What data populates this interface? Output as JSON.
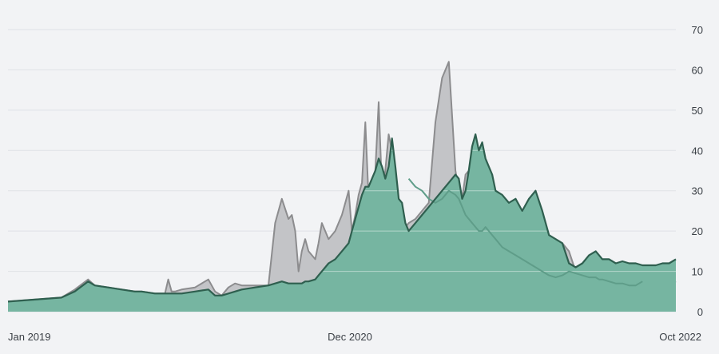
{
  "chart_data": {
    "type": "area",
    "x_tick_labels": [
      "Jan 2019",
      "Dec 2020",
      "Oct 2022"
    ],
    "ylim": [
      0,
      70
    ],
    "y_ticks": [
      0,
      10,
      20,
      30,
      40,
      50,
      60,
      70
    ],
    "y_axis_position": "right",
    "grid": "horizontal",
    "legend": "none",
    "colors": {
      "background": "#f2f3f5",
      "grid": "#dfe2e6",
      "gray_fill": "#c3c4c7",
      "gray_line": "#8c8c8e",
      "green_fill": "#76b5a1",
      "green_line": "#2f5f4f",
      "overlay_line": "#5f9d89"
    },
    "x_points": [
      0,
      0.04,
      0.08,
      0.1,
      0.12,
      0.13,
      0.15,
      0.17,
      0.19,
      0.2,
      0.22,
      0.235,
      0.24,
      0.245,
      0.25,
      0.26,
      0.28,
      0.3,
      0.31,
      0.32,
      0.33,
      0.34,
      0.35,
      0.37,
      0.39,
      0.4,
      0.41,
      0.42,
      0.425,
      0.43,
      0.435,
      0.44,
      0.445,
      0.45,
      0.46,
      0.465,
      0.47,
      0.48,
      0.49,
      0.5,
      0.51,
      0.515,
      0.52,
      0.525,
      0.53,
      0.535,
      0.54,
      0.545,
      0.55,
      0.555,
      0.56,
      0.565,
      0.57,
      0.575,
      0.58,
      0.585,
      0.59,
      0.595,
      0.6,
      0.61,
      0.62,
      0.63,
      0.64,
      0.65,
      0.66,
      0.67,
      0.675,
      0.68,
      0.685,
      0.69,
      0.695,
      0.7,
      0.705,
      0.71,
      0.715,
      0.72,
      0.725,
      0.73,
      0.74,
      0.75,
      0.76,
      0.77,
      0.78,
      0.79,
      0.8,
      0.81,
      0.82,
      0.83,
      0.84,
      0.85,
      0.86,
      0.87,
      0.88,
      0.885,
      0.89,
      0.9,
      0.91,
      0.92,
      0.93,
      0.94,
      0.95,
      0.96,
      0.97,
      0.98,
      0.99,
      1.0
    ],
    "series": [
      {
        "id": "gray",
        "values": [
          2.5,
          3,
          3.5,
          5.5,
          8,
          6.5,
          6,
          5.5,
          5,
          5,
          4.5,
          4.5,
          8,
          5,
          5,
          5.5,
          6,
          8,
          5,
          4,
          6,
          7,
          6.5,
          6.5,
          6.5,
          22,
          28,
          23,
          24,
          20,
          10,
          15,
          18,
          15,
          13,
          17,
          22,
          18,
          20,
          24,
          30,
          20,
          24,
          29,
          32,
          47,
          28,
          26,
          35,
          52,
          30,
          35,
          44,
          40,
          33,
          26,
          24,
          21,
          22,
          23,
          25,
          27,
          47,
          58,
          62,
          35,
          30,
          28,
          34,
          35,
          34,
          33,
          32,
          31,
          30,
          29,
          28,
          27,
          25,
          23,
          22,
          20,
          21,
          21,
          20,
          19,
          16,
          17,
          15,
          10,
          9,
          8.5,
          9,
          10,
          9.5,
          9,
          8.5,
          8.5,
          8,
          8,
          7.5,
          7,
          7,
          6.5,
          6.5,
          7.5
        ]
      },
      {
        "id": "green",
        "values": [
          2.5,
          3,
          3.5,
          5,
          7.5,
          6.5,
          6,
          5.5,
          5,
          5,
          4.5,
          4.5,
          4.5,
          4.5,
          4.5,
          4.5,
          5,
          5.5,
          4,
          4,
          4.5,
          5,
          5.5,
          6,
          6.5,
          7,
          7.5,
          7,
          7,
          7,
          7,
          7,
          7.5,
          7.5,
          8,
          9,
          10,
          12,
          13,
          15,
          17,
          20,
          23,
          26,
          29,
          31,
          31,
          33,
          35,
          38,
          36,
          33,
          36,
          43,
          36,
          28,
          27,
          22,
          20,
          22,
          24,
          26,
          28,
          30,
          32,
          34,
          33,
          28,
          30,
          35,
          41,
          44,
          40,
          42,
          38,
          36,
          34,
          30,
          29,
          27,
          28,
          25,
          28,
          30,
          25,
          19,
          18,
          17,
          12,
          11,
          12,
          14,
          15,
          14,
          13,
          13,
          12,
          12.5,
          12,
          12,
          11.5,
          11.5,
          11.5,
          12,
          12,
          13
        ]
      },
      {
        "id": "overlay",
        "values": [
          null,
          null,
          null,
          null,
          null,
          null,
          null,
          null,
          null,
          null,
          null,
          null,
          null,
          null,
          null,
          null,
          null,
          null,
          null,
          null,
          null,
          null,
          null,
          null,
          null,
          null,
          null,
          null,
          null,
          null,
          null,
          null,
          null,
          null,
          null,
          null,
          null,
          null,
          null,
          null,
          null,
          null,
          null,
          null,
          null,
          null,
          null,
          null,
          null,
          null,
          null,
          null,
          null,
          null,
          null,
          null,
          null,
          null,
          33,
          31,
          30,
          28,
          27,
          28,
          30,
          29,
          28,
          26,
          24,
          23,
          22,
          21,
          20,
          20,
          21,
          20,
          19,
          18,
          16,
          15,
          14,
          13,
          12,
          11,
          10,
          9,
          8.5,
          9,
          10,
          9.5,
          9,
          8.5,
          8.5,
          8,
          8,
          7.5,
          7,
          7,
          6.5,
          6.5,
          7.5,
          null,
          null,
          null,
          null,
          null
        ]
      }
    ]
  }
}
